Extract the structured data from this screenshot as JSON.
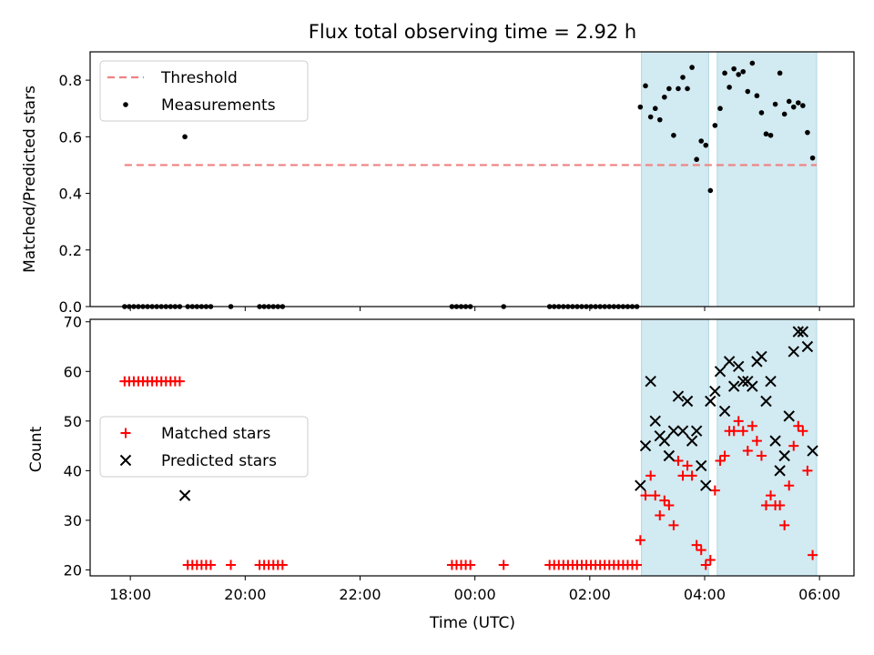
{
  "title": "Flux total observing time = 2.92 h",
  "colors": {
    "threshold": "#f08080",
    "measurements": "#000000",
    "matched": "#ff0000",
    "predicted": "#000000",
    "shade": "#add8e6"
  },
  "chart_data": [
    {
      "type": "scatter",
      "ylabel": "Matched/Predicted stars",
      "ylim": [
        0,
        0.9
      ],
      "yticks": [
        "0.0",
        "0.2",
        "0.4",
        "0.6",
        "0.8"
      ],
      "xlim": [
        17.3,
        30.6
      ],
      "shaded_regions": [
        [
          26.9,
          28.07
        ],
        [
          28.22,
          29.95
        ]
      ],
      "legend": {
        "placement": "upper-left",
        "entries": [
          "Threshold",
          "Measurements"
        ]
      },
      "threshold": {
        "name": "Threshold",
        "x": [
          17.9,
          29.95
        ],
        "y": [
          0.5,
          0.5
        ]
      },
      "series": [
        {
          "name": "Measurements",
          "points": [
            [
              17.9,
              0
            ],
            [
              17.98,
              0
            ],
            [
              18.06,
              0
            ],
            [
              18.14,
              0
            ],
            [
              18.22,
              0
            ],
            [
              18.3,
              0
            ],
            [
              18.38,
              0
            ],
            [
              18.46,
              0
            ],
            [
              18.54,
              0
            ],
            [
              18.62,
              0
            ],
            [
              18.7,
              0
            ],
            [
              18.78,
              0
            ],
            [
              18.86,
              0
            ],
            [
              18.95,
              0.6
            ],
            [
              19.0,
              0
            ],
            [
              19.08,
              0
            ],
            [
              19.16,
              0
            ],
            [
              19.24,
              0
            ],
            [
              19.32,
              0
            ],
            [
              19.4,
              0
            ],
            [
              19.75,
              0
            ],
            [
              20.25,
              0
            ],
            [
              20.33,
              0
            ],
            [
              20.41,
              0
            ],
            [
              20.49,
              0
            ],
            [
              20.57,
              0
            ],
            [
              20.65,
              0
            ],
            [
              23.6,
              0
            ],
            [
              23.68,
              0
            ],
            [
              23.76,
              0
            ],
            [
              23.84,
              0
            ],
            [
              23.92,
              0
            ],
            [
              24.5,
              0
            ],
            [
              25.3,
              0
            ],
            [
              25.38,
              0
            ],
            [
              25.46,
              0
            ],
            [
              25.54,
              0
            ],
            [
              25.62,
              0
            ],
            [
              25.7,
              0
            ],
            [
              25.78,
              0
            ],
            [
              25.86,
              0
            ],
            [
              25.94,
              0
            ],
            [
              26.02,
              0
            ],
            [
              26.1,
              0
            ],
            [
              26.18,
              0
            ],
            [
              26.26,
              0
            ],
            [
              26.34,
              0
            ],
            [
              26.42,
              0
            ],
            [
              26.5,
              0
            ],
            [
              26.58,
              0
            ],
            [
              26.66,
              0
            ],
            [
              26.74,
              0
            ],
            [
              26.82,
              0
            ],
            [
              26.88,
              0.705
            ],
            [
              26.97,
              0.78
            ],
            [
              27.06,
              0.67
            ],
            [
              27.14,
              0.7
            ],
            [
              27.22,
              0.66
            ],
            [
              27.3,
              0.74
            ],
            [
              27.38,
              0.77
            ],
            [
              27.46,
              0.605
            ],
            [
              27.54,
              0.77
            ],
            [
              27.62,
              0.81
            ],
            [
              27.7,
              0.77
            ],
            [
              27.78,
              0.845
            ],
            [
              27.86,
              0.52
            ],
            [
              27.94,
              0.585
            ],
            [
              28.02,
              0.57
            ],
            [
              28.1,
              0.41
            ],
            [
              28.18,
              0.64
            ],
            [
              28.27,
              0.7
            ],
            [
              28.35,
              0.825
            ],
            [
              28.43,
              0.775
            ],
            [
              28.51,
              0.84
            ],
            [
              28.59,
              0.82
            ],
            [
              28.67,
              0.83
            ],
            [
              28.75,
              0.76
            ],
            [
              28.83,
              0.86
            ],
            [
              28.91,
              0.745
            ],
            [
              28.99,
              0.685
            ],
            [
              29.07,
              0.61
            ],
            [
              29.15,
              0.605
            ],
            [
              29.23,
              0.715
            ],
            [
              29.31,
              0.825
            ],
            [
              29.39,
              0.68
            ],
            [
              29.47,
              0.725
            ],
            [
              29.55,
              0.705
            ],
            [
              29.63,
              0.72
            ],
            [
              29.71,
              0.71
            ],
            [
              29.79,
              0.615
            ],
            [
              29.88,
              0.525
            ]
          ]
        }
      ]
    },
    {
      "type": "scatter",
      "xlabel": "Time (UTC)",
      "ylabel": "Count",
      "ylim": [
        18.8,
        70.5
      ],
      "yticks": [
        "20",
        "30",
        "40",
        "50",
        "60",
        "70"
      ],
      "xlim": [
        17.3,
        30.6
      ],
      "xticks": [
        {
          "value": 18,
          "label": "18:00"
        },
        {
          "value": 20,
          "label": "20:00"
        },
        {
          "value": 22,
          "label": "22:00"
        },
        {
          "value": 24,
          "label": "00:00"
        },
        {
          "value": 26,
          "label": "02:00"
        },
        {
          "value": 28,
          "label": "04:00"
        },
        {
          "value": 30,
          "label": "06:00"
        }
      ],
      "shaded_regions": [
        [
          26.9,
          28.07
        ],
        [
          28.22,
          29.95
        ]
      ],
      "legend": {
        "placement": "center-left",
        "entries": [
          "Matched stars",
          "Predicted stars"
        ]
      },
      "series": [
        {
          "name": "Matched stars",
          "points": [
            [
              17.9,
              58
            ],
            [
              17.98,
              58
            ],
            [
              18.06,
              58
            ],
            [
              18.14,
              58
            ],
            [
              18.22,
              58
            ],
            [
              18.3,
              58
            ],
            [
              18.38,
              58
            ],
            [
              18.46,
              58
            ],
            [
              18.54,
              58
            ],
            [
              18.62,
              58
            ],
            [
              18.7,
              58
            ],
            [
              18.78,
              58
            ],
            [
              18.86,
              58
            ],
            [
              19.0,
              21
            ],
            [
              19.08,
              21
            ],
            [
              19.16,
              21
            ],
            [
              19.24,
              21
            ],
            [
              19.32,
              21
            ],
            [
              19.4,
              21
            ],
            [
              19.75,
              21
            ],
            [
              20.25,
              21
            ],
            [
              20.33,
              21
            ],
            [
              20.41,
              21
            ],
            [
              20.49,
              21
            ],
            [
              20.57,
              21
            ],
            [
              20.65,
              21
            ],
            [
              23.6,
              21
            ],
            [
              23.68,
              21
            ],
            [
              23.76,
              21
            ],
            [
              23.84,
              21
            ],
            [
              23.92,
              21
            ],
            [
              24.5,
              21
            ],
            [
              25.3,
              21
            ],
            [
              25.38,
              21
            ],
            [
              25.46,
              21
            ],
            [
              25.54,
              21
            ],
            [
              25.62,
              21
            ],
            [
              25.7,
              21
            ],
            [
              25.78,
              21
            ],
            [
              25.86,
              21
            ],
            [
              25.94,
              21
            ],
            [
              26.02,
              21
            ],
            [
              26.1,
              21
            ],
            [
              26.18,
              21
            ],
            [
              26.26,
              21
            ],
            [
              26.34,
              21
            ],
            [
              26.42,
              21
            ],
            [
              26.5,
              21
            ],
            [
              26.58,
              21
            ],
            [
              26.66,
              21
            ],
            [
              26.74,
              21
            ],
            [
              26.82,
              21
            ],
            [
              26.88,
              26
            ],
            [
              26.97,
              35
            ],
            [
              27.06,
              39
            ],
            [
              27.14,
              35
            ],
            [
              27.22,
              31
            ],
            [
              27.3,
              34
            ],
            [
              27.38,
              33
            ],
            [
              27.46,
              29
            ],
            [
              27.54,
              42
            ],
            [
              27.62,
              39
            ],
            [
              27.7,
              41
            ],
            [
              27.78,
              39
            ],
            [
              27.86,
              25
            ],
            [
              27.94,
              24
            ],
            [
              28.02,
              21
            ],
            [
              28.1,
              22
            ],
            [
              28.18,
              36
            ],
            [
              28.27,
              42
            ],
            [
              28.35,
              43
            ],
            [
              28.43,
              48
            ],
            [
              28.51,
              48
            ],
            [
              28.59,
              50
            ],
            [
              28.67,
              48
            ],
            [
              28.75,
              44
            ],
            [
              28.83,
              49
            ],
            [
              28.91,
              46
            ],
            [
              28.99,
              43
            ],
            [
              29.07,
              33
            ],
            [
              29.15,
              35
            ],
            [
              29.23,
              33
            ],
            [
              29.31,
              33
            ],
            [
              29.39,
              29
            ],
            [
              29.47,
              37
            ],
            [
              29.55,
              45
            ],
            [
              29.63,
              49
            ],
            [
              29.71,
              48
            ],
            [
              29.79,
              40
            ],
            [
              29.88,
              23
            ]
          ]
        },
        {
          "name": "Predicted stars",
          "points": [
            [
              18.95,
              35
            ],
            [
              26.88,
              37
            ],
            [
              26.97,
              45
            ],
            [
              27.06,
              58
            ],
            [
              27.14,
              50
            ],
            [
              27.22,
              47
            ],
            [
              27.3,
              46
            ],
            [
              27.38,
              43
            ],
            [
              27.46,
              48
            ],
            [
              27.54,
              55
            ],
            [
              27.62,
              48
            ],
            [
              27.7,
              54
            ],
            [
              27.78,
              46
            ],
            [
              27.86,
              48
            ],
            [
              27.94,
              41
            ],
            [
              28.02,
              37
            ],
            [
              28.1,
              54
            ],
            [
              28.18,
              56
            ],
            [
              28.27,
              60
            ],
            [
              28.35,
              52
            ],
            [
              28.43,
              62
            ],
            [
              28.51,
              57
            ],
            [
              28.59,
              61
            ],
            [
              28.67,
              58
            ],
            [
              28.75,
              58
            ],
            [
              28.83,
              57
            ],
            [
              28.91,
              62
            ],
            [
              28.99,
              63
            ],
            [
              29.07,
              54
            ],
            [
              29.15,
              58
            ],
            [
              29.23,
              46
            ],
            [
              29.31,
              40
            ],
            [
              29.39,
              43
            ],
            [
              29.47,
              51
            ],
            [
              29.55,
              64
            ],
            [
              29.63,
              68
            ],
            [
              29.71,
              68
            ],
            [
              29.79,
              65
            ],
            [
              29.88,
              44
            ]
          ]
        }
      ]
    }
  ]
}
